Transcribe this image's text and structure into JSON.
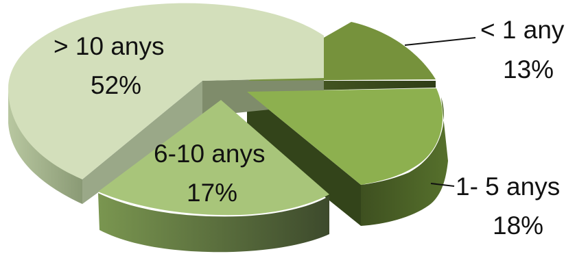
{
  "chart_data": {
    "type": "pie",
    "title": "",
    "slices": [
      {
        "label": "< 1 any",
        "value": 13,
        "display": "13%",
        "color": "#76923c"
      },
      {
        "label": "1- 5 anys",
        "value": 18,
        "display": "18%",
        "color": "#8db04f"
      },
      {
        "label": "6-10 anys",
        "value": 17,
        "display": "17%",
        "color": "#a8c57a"
      },
      {
        "label": "> 10 anys",
        "value": 52,
        "display": "52%",
        "color": "#d3dfbb"
      }
    ]
  }
}
